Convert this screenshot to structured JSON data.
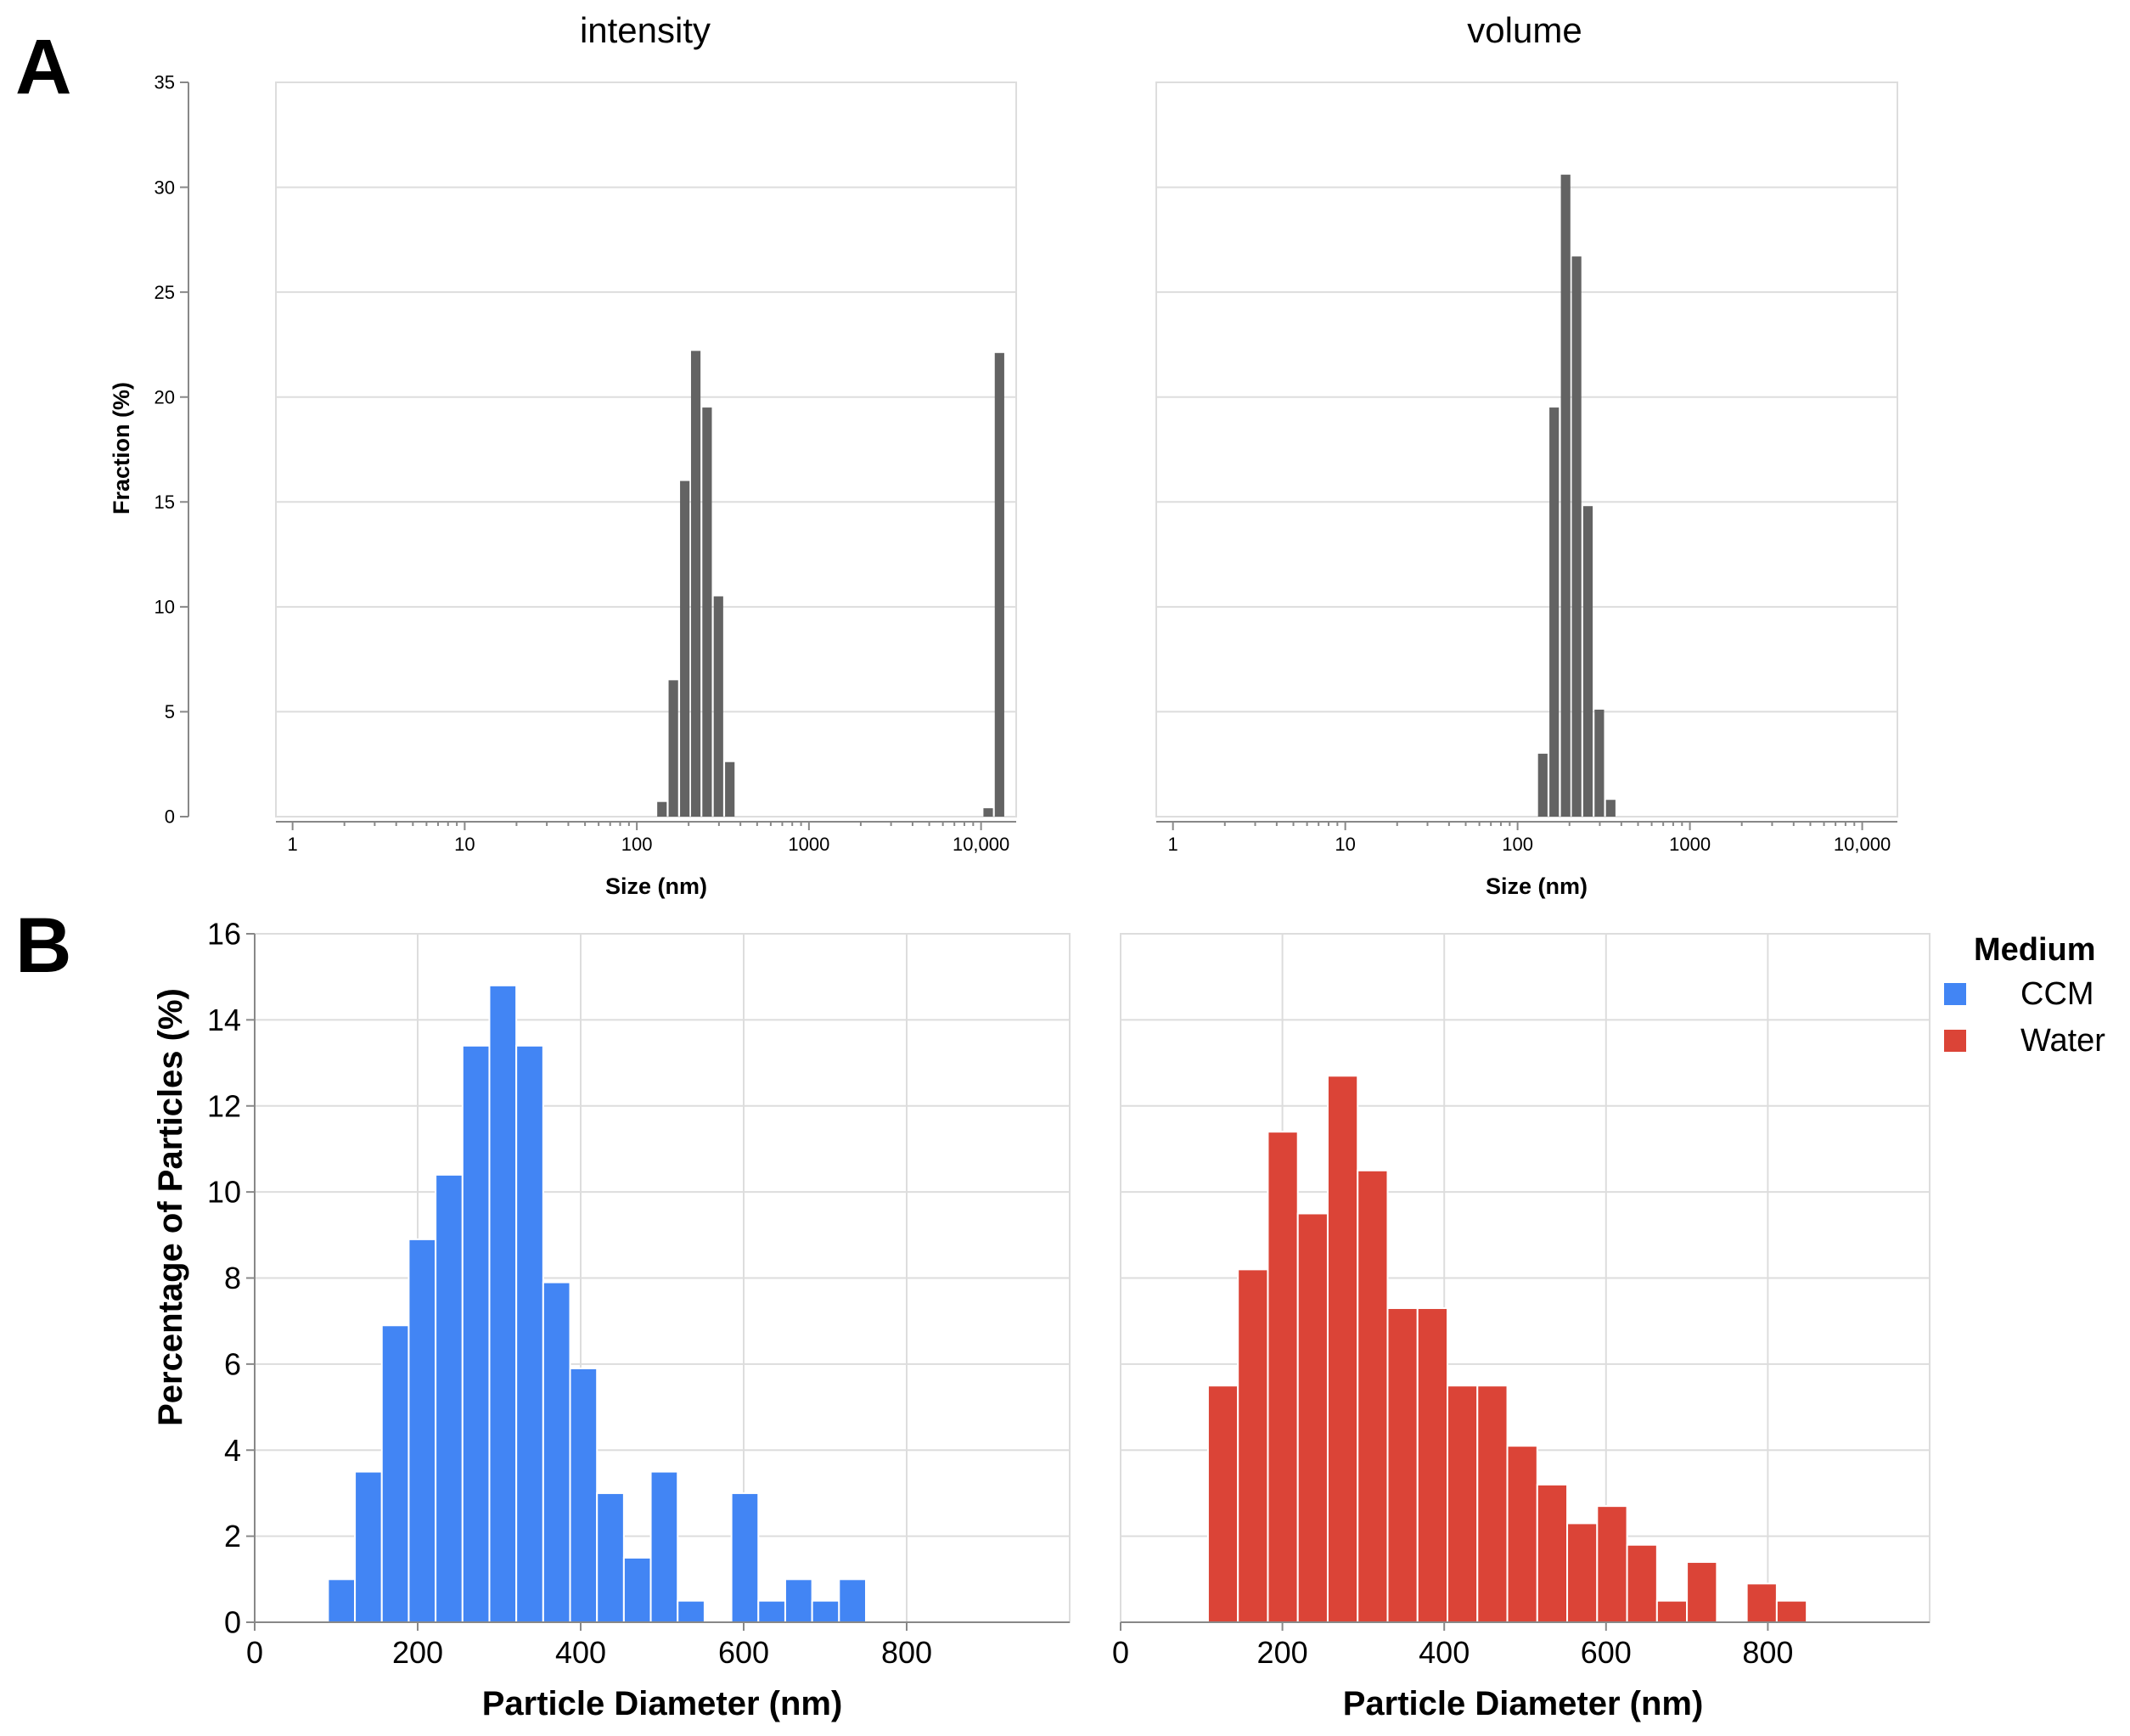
{
  "figure": {
    "panel_a_label": "A",
    "panel_b_label": "B"
  },
  "chart_data": [
    {
      "id": "a_intensity",
      "type": "bar",
      "title": "intensity",
      "xlabel": "Size (nm)",
      "ylabel": "Fraction (%)",
      "xscale": "log",
      "xlim": [
        0.8,
        16000
      ],
      "ylim": [
        0,
        35
      ],
      "xticks": [
        1,
        10,
        100,
        1000,
        10000
      ],
      "xtick_labels": [
        "1",
        "10",
        "100",
        "1000",
        "10,000"
      ],
      "yticks": [
        0,
        5,
        10,
        15,
        20,
        25,
        30,
        35
      ],
      "ytick_labels": [
        "0",
        "5",
        "10",
        "15",
        "20",
        "25",
        "30",
        "35"
      ],
      "grid": true,
      "color": "#636363",
      "bars": [
        {
          "x": 140,
          "value": 0.7
        },
        {
          "x": 163,
          "value": 6.5
        },
        {
          "x": 190,
          "value": 16.0
        },
        {
          "x": 220,
          "value": 22.2
        },
        {
          "x": 256,
          "value": 19.5
        },
        {
          "x": 298,
          "value": 10.5
        },
        {
          "x": 347,
          "value": 2.6
        },
        {
          "x": 11000,
          "value": 0.4
        },
        {
          "x": 12800,
          "value": 22.1
        }
      ]
    },
    {
      "id": "a_volume",
      "type": "bar",
      "title": "volume",
      "xlabel": "Size (nm)",
      "ylabel": "",
      "xscale": "log",
      "xlim": [
        0.8,
        16000
      ],
      "ylim": [
        0,
        35
      ],
      "xticks": [
        1,
        10,
        100,
        1000,
        10000
      ],
      "xtick_labels": [
        "1",
        "10",
        "100",
        "1000",
        "10,000"
      ],
      "grid": true,
      "color": "#636363",
      "bars": [
        {
          "x": 140,
          "value": 3.0
        },
        {
          "x": 163,
          "value": 19.5
        },
        {
          "x": 190,
          "value": 30.6
        },
        {
          "x": 220,
          "value": 26.7
        },
        {
          "x": 256,
          "value": 14.8
        },
        {
          "x": 298,
          "value": 5.1
        },
        {
          "x": 347,
          "value": 0.8
        }
      ]
    },
    {
      "id": "b_ccm",
      "type": "bar",
      "series_name": "CCM",
      "xlabel": "Particle Diameter (nm)",
      "ylabel": "Percentage of Particles (%)",
      "xlim": [
        0,
        1000
      ],
      "ylim": [
        0,
        16
      ],
      "xticks": [
        0,
        200,
        400,
        600,
        800
      ],
      "xtick_labels": [
        "0",
        "200",
        "400",
        "600",
        "800"
      ],
      "yticks": [
        0,
        2,
        4,
        6,
        8,
        10,
        12,
        14,
        16
      ],
      "ytick_labels": [
        "0",
        "2",
        "4",
        "6",
        "8",
        "10",
        "12",
        "14",
        "16"
      ],
      "bin_width": 33,
      "grid": true,
      "color": "#4285f4",
      "bins": [
        {
          "start": 90,
          "value": 1.0
        },
        {
          "start": 123,
          "value": 3.5
        },
        {
          "start": 156,
          "value": 6.9
        },
        {
          "start": 189,
          "value": 8.9
        },
        {
          "start": 222,
          "value": 10.4
        },
        {
          "start": 255,
          "value": 13.4
        },
        {
          "start": 288,
          "value": 14.8
        },
        {
          "start": 321,
          "value": 13.4
        },
        {
          "start": 354,
          "value": 7.9
        },
        {
          "start": 387,
          "value": 5.9
        },
        {
          "start": 420,
          "value": 3.0
        },
        {
          "start": 453,
          "value": 1.5
        },
        {
          "start": 486,
          "value": 3.5
        },
        {
          "start": 519,
          "value": 0.5
        },
        {
          "start": 585,
          "value": 3.0
        },
        {
          "start": 618,
          "value": 0.5
        },
        {
          "start": 651,
          "value": 1.0
        },
        {
          "start": 684,
          "value": 0.5
        },
        {
          "start": 717,
          "value": 1.0
        }
      ]
    },
    {
      "id": "b_water",
      "type": "bar",
      "series_name": "Water",
      "xlabel": "Particle Diameter (nm)",
      "ylabel": "",
      "xlim": [
        0,
        1000
      ],
      "ylim": [
        0,
        16
      ],
      "xticks": [
        0,
        200,
        400,
        600,
        800
      ],
      "xtick_labels": [
        "0",
        "200",
        "400",
        "600",
        "800"
      ],
      "bin_width": 37,
      "grid": true,
      "color": "#db4437",
      "bins": [
        {
          "start": 108,
          "value": 5.5
        },
        {
          "start": 145,
          "value": 8.2
        },
        {
          "start": 182,
          "value": 11.4
        },
        {
          "start": 219,
          "value": 9.5
        },
        {
          "start": 256,
          "value": 12.7
        },
        {
          "start": 293,
          "value": 10.5
        },
        {
          "start": 330,
          "value": 7.3
        },
        {
          "start": 367,
          "value": 7.3
        },
        {
          "start": 404,
          "value": 5.5
        },
        {
          "start": 441,
          "value": 5.5
        },
        {
          "start": 478,
          "value": 4.1
        },
        {
          "start": 515,
          "value": 3.2
        },
        {
          "start": 552,
          "value": 2.3
        },
        {
          "start": 589,
          "value": 2.7
        },
        {
          "start": 626,
          "value": 1.8
        },
        {
          "start": 663,
          "value": 0.5
        },
        {
          "start": 700,
          "value": 1.4
        },
        {
          "start": 774,
          "value": 0.9
        },
        {
          "start": 811,
          "value": 0.5
        }
      ]
    }
  ],
  "legend": {
    "title": "Medium",
    "items": [
      {
        "label": "CCM",
        "color": "#4285f4"
      },
      {
        "label": "Water",
        "color": "#db4437"
      }
    ]
  }
}
